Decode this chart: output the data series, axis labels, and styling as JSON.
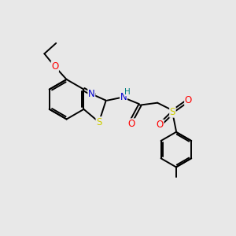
{
  "bg_color": "#e8e8e8",
  "bond_color": "#000000",
  "atom_colors": {
    "N": "#0000cd",
    "O": "#ff0000",
    "S_thiazole": "#cccc00",
    "S_sulfonyl": "#cccc00",
    "H": "#008080",
    "C": "#000000"
  },
  "figsize": [
    3.0,
    3.0
  ],
  "dpi": 100,
  "lw": 1.4
}
